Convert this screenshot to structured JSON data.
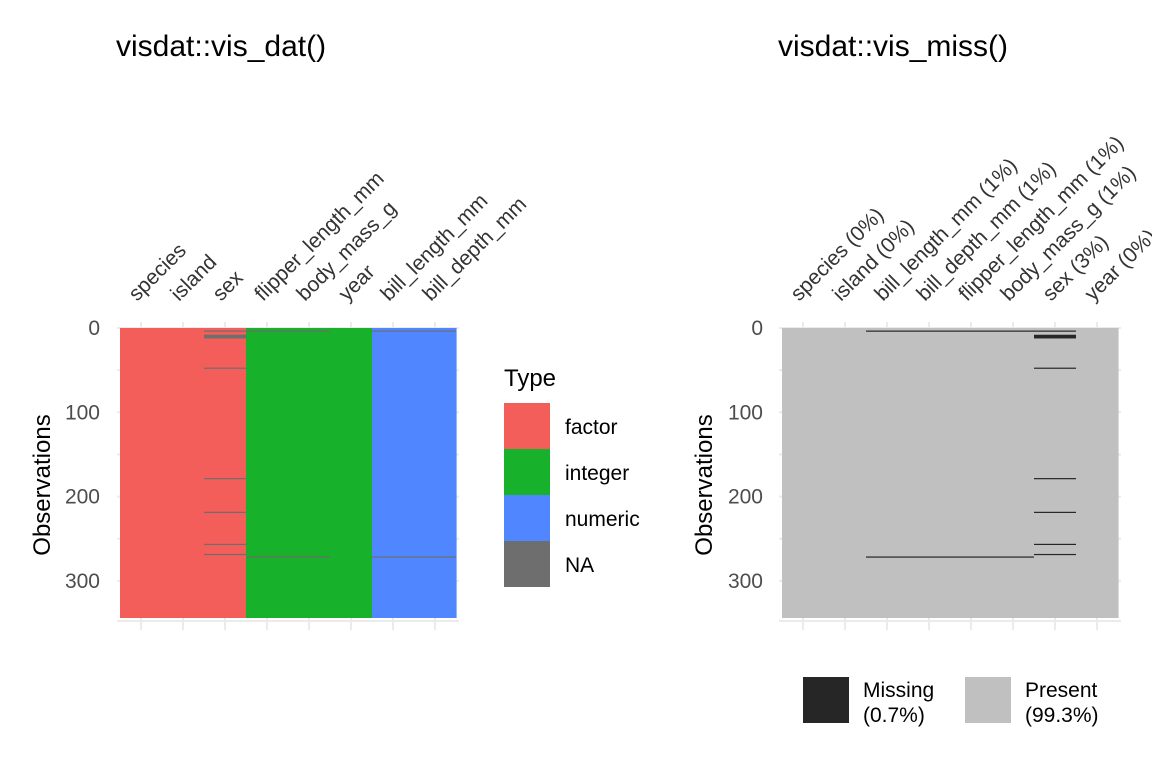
{
  "chart_data": [
    {
      "type": "heatmap",
      "title": "visdat::vis_dat()",
      "xlabel": "",
      "ylabel": "Observations",
      "n_observations": 344,
      "ylim": [
        0,
        344
      ],
      "yticks": [
        0,
        100,
        200,
        300
      ],
      "y_reversed": true,
      "x_axis_position": "top",
      "columns": [
        "species",
        "island",
        "sex",
        "flipper_length_mm",
        "body_mass_g",
        "year",
        "bill_length_mm",
        "bill_depth_mm"
      ],
      "column_types": [
        "factor",
        "factor",
        "factor",
        "integer",
        "integer",
        "integer",
        "numeric",
        "numeric"
      ],
      "na_rows": {
        "sex": [
          4,
          9,
          10,
          11,
          12,
          48,
          179,
          219,
          257,
          269
        ],
        "flipper_length_mm": [
          4,
          272
        ],
        "body_mass_g": [
          4,
          272
        ],
        "bill_length_mm": [
          4,
          272
        ],
        "bill_depth_mm": [
          4,
          272
        ]
      },
      "legend": {
        "title": "Type",
        "placement": "right",
        "entries": [
          {
            "label": "factor",
            "color": "#f35e5a"
          },
          {
            "label": "integer",
            "color": "#17b12b"
          },
          {
            "label": "numeric",
            "color": "#5086ff"
          },
          {
            "label": "NA",
            "color": "#6e6e6e"
          }
        ]
      }
    },
    {
      "type": "heatmap",
      "title": "visdat::vis_miss()",
      "xlabel": "",
      "ylabel": "Observations",
      "n_observations": 344,
      "ylim": [
        0,
        344
      ],
      "yticks": [
        0,
        100,
        200,
        300
      ],
      "y_reversed": true,
      "x_axis_position": "top",
      "columns": [
        "species (0%)",
        "island (0%)",
        "bill_length_mm (1%)",
        "bill_depth_mm (1%)",
        "flipper_length_mm (1%)",
        "body_mass_g (1%)",
        "sex (3%)",
        "year (0%)"
      ],
      "missing_rows": {
        "bill_length_mm (1%)": [
          4,
          272
        ],
        "bill_depth_mm (1%)": [
          4,
          272
        ],
        "flipper_length_mm (1%)": [
          4,
          272
        ],
        "body_mass_g (1%)": [
          4,
          272
        ],
        "sex (3%)": [
          4,
          9,
          10,
          11,
          12,
          48,
          179,
          219,
          257,
          269
        ]
      },
      "legend": {
        "placement": "bottom",
        "entries": [
          {
            "label_line1": "Missing",
            "label_line2": "(0.7%)",
            "color": "#262626"
          },
          {
            "label_line1": "Present",
            "label_line2": "(99.3%)",
            "color": "#c0c0c0"
          }
        ]
      }
    }
  ]
}
